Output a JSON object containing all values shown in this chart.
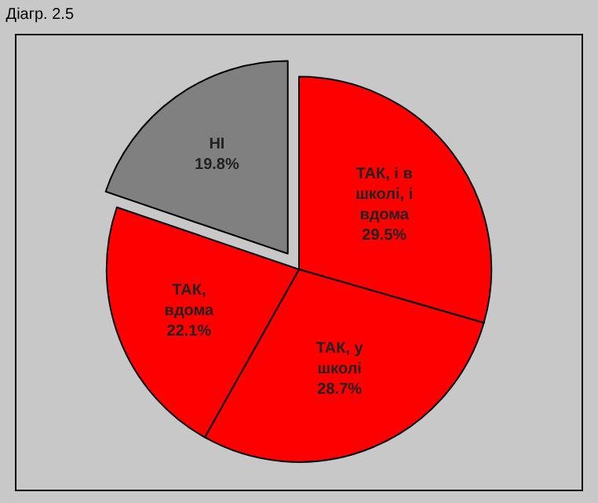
{
  "chart_data": {
    "type": "pie",
    "title": "Діагр. 2.5",
    "categories": [
      "ТАК, і в школі, і вдома",
      "ТАК, у школі",
      "ТАК, вдома",
      "НІ"
    ],
    "values": [
      29.5,
      28.7,
      22.1,
      19.8
    ],
    "colors": [
      "#ff0000",
      "#ff0000",
      "#ff0000",
      "#808080"
    ],
    "value_labels": [
      "29.5%",
      "28.7%",
      "22.1%",
      "19.8%"
    ],
    "legend": false
  }
}
